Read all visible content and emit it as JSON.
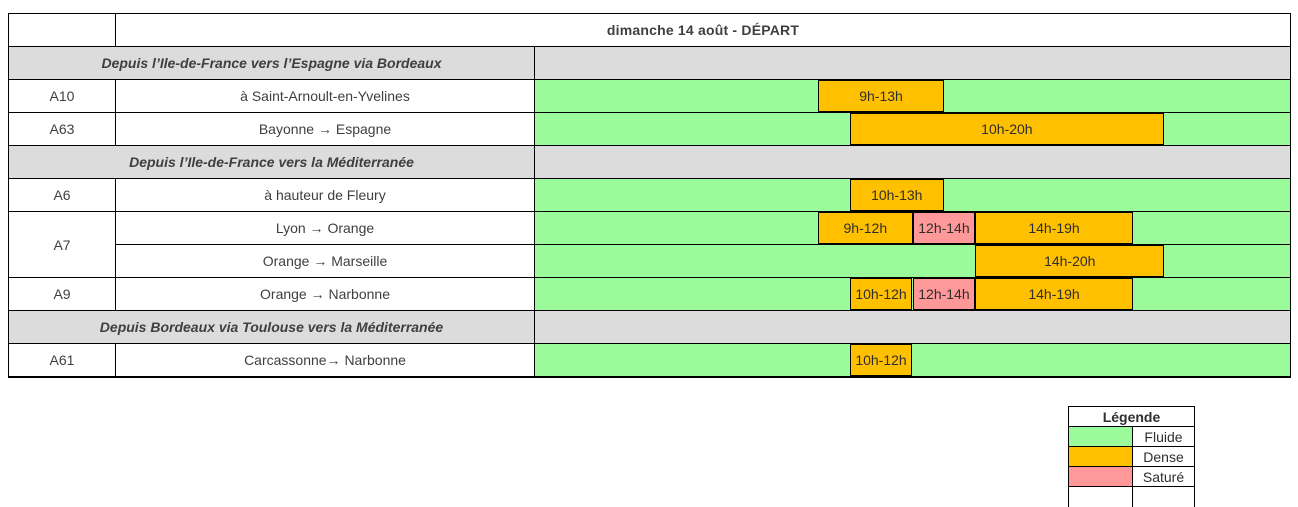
{
  "page": {
    "title": "dimanche 14 août - DÉPART"
  },
  "colors": {
    "fluide": "#9BFB9B",
    "dense": "#FFC000",
    "sature": "#FF9999",
    "section_bg": "#DCDCDC",
    "border": "#000000"
  },
  "timeline": {
    "hours_start": 0,
    "hours_end": 24
  },
  "sections": [
    {
      "label": "Depuis l’Ile-de-France vers l’Espagne via Bordeaux",
      "rows": [
        {
          "road": "A10",
          "span": 1,
          "route": "à Saint-Arnoult-en-Yvelines",
          "segments": [
            {
              "status": "fluide",
              "from": 0,
              "to": 9,
              "label": ""
            },
            {
              "status": "dense",
              "from": 9,
              "to": 13,
              "label": "9h-13h"
            },
            {
              "status": "fluide",
              "from": 13,
              "to": 24,
              "label": ""
            }
          ]
        },
        {
          "road": "A63",
          "span": 1,
          "route": "Bayonne → Espagne",
          "segments": [
            {
              "status": "fluide",
              "from": 0,
              "to": 10,
              "label": ""
            },
            {
              "status": "dense",
              "from": 10,
              "to": 20,
              "label": "10h-20h"
            },
            {
              "status": "fluide",
              "from": 20,
              "to": 24,
              "label": ""
            }
          ]
        }
      ]
    },
    {
      "label": "Depuis l’Ile-de-France vers la Méditerranée",
      "rows": [
        {
          "road": "A6",
          "span": 1,
          "route": "à hauteur de Fleury",
          "segments": [
            {
              "status": "fluide",
              "from": 0,
              "to": 10,
              "label": ""
            },
            {
              "status": "dense",
              "from": 10,
              "to": 13,
              "label": "10h-13h"
            },
            {
              "status": "fluide",
              "from": 13,
              "to": 24,
              "label": ""
            }
          ]
        },
        {
          "road": "A7",
          "span": 2,
          "route": "Lyon → Orange",
          "segments": [
            {
              "status": "fluide",
              "from": 0,
              "to": 9,
              "label": ""
            },
            {
              "status": "dense",
              "from": 9,
              "to": 12,
              "label": "9h-12h"
            },
            {
              "status": "sature",
              "from": 12,
              "to": 14,
              "label": "12h-14h"
            },
            {
              "status": "dense",
              "from": 14,
              "to": 19,
              "label": "14h-19h"
            },
            {
              "status": "fluide",
              "from": 19,
              "to": 24,
              "label": ""
            }
          ]
        },
        {
          "road": null,
          "span": 0,
          "route": "Orange → Marseille",
          "segments": [
            {
              "status": "fluide",
              "from": 0,
              "to": 14,
              "label": ""
            },
            {
              "status": "dense",
              "from": 14,
              "to": 20,
              "label": "14h-20h"
            },
            {
              "status": "fluide",
              "from": 20,
              "to": 24,
              "label": ""
            }
          ]
        },
        {
          "road": "A9",
          "span": 1,
          "route": "Orange → Narbonne",
          "segments": [
            {
              "status": "fluide",
              "from": 0,
              "to": 10,
              "label": ""
            },
            {
              "status": "dense",
              "from": 10,
              "to": 12,
              "label": "10h-12h"
            },
            {
              "status": "sature",
              "from": 12,
              "to": 14,
              "label": "12h-14h"
            },
            {
              "status": "dense",
              "from": 14,
              "to": 19,
              "label": "14h-19h"
            },
            {
              "status": "fluide",
              "from": 19,
              "to": 24,
              "label": ""
            }
          ]
        }
      ]
    },
    {
      "label": "Depuis Bordeaux via Toulouse vers la Méditerranée",
      "rows": [
        {
          "road": "A61",
          "span": 1,
          "route": "Carcassonne→ Narbonne",
          "segments": [
            {
              "status": "fluide",
              "from": 0,
              "to": 10,
              "label": ""
            },
            {
              "status": "dense",
              "from": 10,
              "to": 12,
              "label": "10h-12h"
            },
            {
              "status": "fluide",
              "from": 12,
              "to": 24,
              "label": ""
            }
          ]
        }
      ]
    }
  ],
  "legend": {
    "title": "Légende",
    "items": [
      {
        "label": "Fluide",
        "status": "fluide"
      },
      {
        "label": "Dense",
        "status": "dense"
      },
      {
        "label": "Saturé",
        "status": "sature"
      }
    ]
  }
}
